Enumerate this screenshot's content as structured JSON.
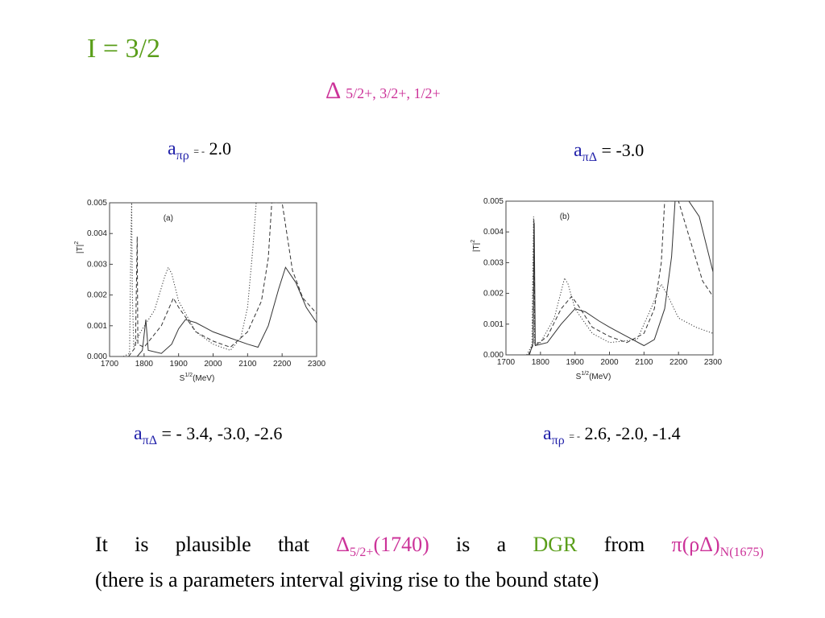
{
  "slide": {
    "title": "I = 3/2",
    "delta_symbol": "Δ",
    "delta_states": "5/2+, 3/2+, 1/2+",
    "colors": {
      "title": "#5a9e1a",
      "delta": "#cc3399",
      "param": "#2222aa"
    }
  },
  "params": {
    "top_left": {
      "a": "a",
      "sub": "πρ",
      "eq_small": "= -",
      "value": "2.0"
    },
    "top_right": {
      "a": "a",
      "sub": "πΔ",
      "eq": "=",
      "value": "-3.0"
    },
    "bottom_left": {
      "a": "a",
      "sub": "πΔ",
      "eq": "=",
      "value": "- 3.4, -3.0, -2.6"
    },
    "bottom_right": {
      "a": "a",
      "sub": "πρ",
      "eq_small": "= -",
      "value": "2.6, -2.0, -1.4"
    }
  },
  "chart_data": [
    {
      "type": "line",
      "panel_label": "(a)",
      "xlabel": "S^{1/2}(MeV)",
      "ylabel": "|T|^2",
      "xlim": [
        1700,
        2300
      ],
      "ylim": [
        0,
        0.005
      ],
      "xticks": [
        "1700",
        "1800",
        "1900",
        "2000",
        "2100",
        "2200",
        "2300"
      ],
      "yticks": [
        "0.000",
        "0.001",
        "0.002",
        "0.003",
        "0.004",
        "0.005"
      ],
      "series": [
        {
          "style": "dotted",
          "points": [
            [
              1740,
              0
            ],
            [
              1758,
              0.0001
            ],
            [
              1762,
              0.004
            ],
            [
              1764,
              0.005
            ],
            [
              1766,
              0.002
            ],
            [
              1770,
              0.0003
            ],
            [
              1790,
              0.0008
            ],
            [
              1830,
              0.0015
            ],
            [
              1860,
              0.0026
            ],
            [
              1870,
              0.0029
            ],
            [
              1880,
              0.0027
            ],
            [
              1900,
              0.0018
            ],
            [
              1950,
              0.0008
            ],
            [
              2000,
              0.0004
            ],
            [
              2050,
              0.0002
            ],
            [
              2080,
              0.0006
            ],
            [
              2100,
              0.0016
            ],
            [
              2115,
              0.0035
            ],
            [
              2125,
              0.005
            ]
          ]
        },
        {
          "style": "dashed",
          "points": [
            [
              1755,
              0
            ],
            [
              1775,
              0.0003
            ],
            [
              1780,
              0.0039
            ],
            [
              1782,
              0.0004
            ],
            [
              1800,
              0.0003
            ],
            [
              1850,
              0.001
            ],
            [
              1885,
              0.0019
            ],
            [
              1900,
              0.0016
            ],
            [
              1950,
              0.0008
            ],
            [
              2000,
              0.0005
            ],
            [
              2050,
              0.0003
            ],
            [
              2100,
              0.0008
            ],
            [
              2140,
              0.0018
            ],
            [
              2160,
              0.0032
            ],
            [
              2170,
              0.005
            ],
            [
              2200,
              0.005
            ],
            [
              2230,
              0.0028
            ],
            [
              2260,
              0.0019
            ],
            [
              2300,
              0.0014
            ]
          ]
        },
        {
          "style": "solid",
          "points": [
            [
              1780,
              0
            ],
            [
              1795,
              0.0002
            ],
            [
              1805,
              0.0012
            ],
            [
              1812,
              0.0002
            ],
            [
              1850,
              0.0001
            ],
            [
              1880,
              0.0004
            ],
            [
              1900,
              0.0009
            ],
            [
              1920,
              0.0012
            ],
            [
              1950,
              0.0011
            ],
            [
              2000,
              0.0008
            ],
            [
              2050,
              0.0006
            ],
            [
              2100,
              0.0004
            ],
            [
              2130,
              0.0003
            ],
            [
              2160,
              0.001
            ],
            [
              2190,
              0.0022
            ],
            [
              2210,
              0.0029
            ],
            [
              2240,
              0.0024
            ],
            [
              2270,
              0.0016
            ],
            [
              2300,
              0.0011
            ]
          ]
        }
      ]
    },
    {
      "type": "line",
      "panel_label": "(b)",
      "xlabel": "S^{1/2}(MeV)",
      "ylabel": "|T|^2",
      "xlim": [
        1700,
        2300
      ],
      "ylim": [
        0,
        0.005
      ],
      "xticks": [
        "1700",
        "1800",
        "1900",
        "2000",
        "2100",
        "2200",
        "2300"
      ],
      "yticks": [
        "0.000",
        "0.001",
        "0.002",
        "0.003",
        "0.004",
        "0.005"
      ],
      "series": [
        {
          "style": "dotted",
          "points": [
            [
              1760,
              0
            ],
            [
              1775,
              0.0003
            ],
            [
              1780,
              0.0045
            ],
            [
              1783,
              0.0004
            ],
            [
              1800,
              0.0004
            ],
            [
              1840,
              0.0012
            ],
            [
              1870,
              0.0025
            ],
            [
              1880,
              0.0023
            ],
            [
              1900,
              0.0015
            ],
            [
              1950,
              0.0007
            ],
            [
              2000,
              0.0004
            ],
            [
              2080,
              0.0005
            ],
            [
              2120,
              0.0015
            ],
            [
              2150,
              0.0023
            ],
            [
              2170,
              0.0019
            ],
            [
              2200,
              0.0012
            ],
            [
              2250,
              0.0009
            ],
            [
              2300,
              0.0007
            ]
          ]
        },
        {
          "style": "dashed",
          "points": [
            [
              1765,
              0
            ],
            [
              1778,
              0.0003
            ],
            [
              1781,
              0.0044
            ],
            [
              1784,
              0.0003
            ],
            [
              1820,
              0.0006
            ],
            [
              1860,
              0.0015
            ],
            [
              1890,
              0.0019
            ],
            [
              1910,
              0.0016
            ],
            [
              1950,
              0.0009
            ],
            [
              2000,
              0.0006
            ],
            [
              2050,
              0.0004
            ],
            [
              2100,
              0.0007
            ],
            [
              2130,
              0.0015
            ],
            [
              2150,
              0.003
            ],
            [
              2160,
              0.005
            ],
            [
              2200,
              0.005
            ],
            [
              2240,
              0.0035
            ],
            [
              2270,
              0.0024
            ],
            [
              2300,
              0.0019
            ]
          ]
        },
        {
          "style": "solid",
          "points": [
            [
              1768,
              0
            ],
            [
              1779,
              0.0004
            ],
            [
              1782,
              0.0043
            ],
            [
              1785,
              0.0003
            ],
            [
              1820,
              0.0004
            ],
            [
              1860,
              0.001
            ],
            [
              1900,
              0.0015
            ],
            [
              1930,
              0.0014
            ],
            [
              1970,
              0.0011
            ],
            [
              2000,
              0.0009
            ],
            [
              2050,
              0.0006
            ],
            [
              2100,
              0.0003
            ],
            [
              2130,
              0.0005
            ],
            [
              2160,
              0.0015
            ],
            [
              2180,
              0.0032
            ],
            [
              2190,
              0.005
            ],
            [
              2230,
              0.005
            ],
            [
              2260,
              0.0045
            ],
            [
              2300,
              0.0027
            ]
          ]
        }
      ]
    }
  ],
  "conclusion": {
    "w1": "It",
    "w2": "is",
    "w3": "plausible",
    "w4": "that",
    "delta": "Δ",
    "delta_sub": "5/2+",
    "delta_mass": "(1740)",
    "w5": "is",
    "w6": "a",
    "dgr": "DGR",
    "w7": "from",
    "pi_rho_delta": "π(ρΔ)",
    "n_sub": "N(1675)",
    "line2": "(there is a parameters interval giving rise to the bound state)"
  }
}
